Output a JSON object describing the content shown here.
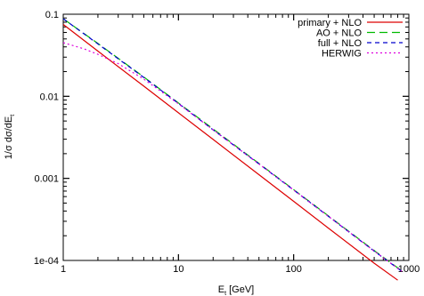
{
  "chart_data": {
    "type": "line",
    "xlabel": "E",
    "xlabel_sub": "t",
    "xlabel_unit": " [GeV]",
    "ylabel": "1/σ dσ/dE",
    "ylabel_sub": "t",
    "xscale": "log",
    "yscale": "log",
    "xlim": [
      1,
      1000
    ],
    "ylim": [
      0.0001,
      0.1
    ],
    "x_ticks": [
      1,
      10,
      100,
      1000
    ],
    "x_tick_labels": [
      "1",
      "10",
      "100",
      "1000"
    ],
    "y_ticks": [
      0.0001,
      0.001,
      0.01,
      0.1
    ],
    "y_tick_labels": [
      "1e-04",
      "0.001",
      "0.01",
      "0.1"
    ],
    "grid": false,
    "legend_position": "top-right",
    "series": [
      {
        "name": "primary + NLO",
        "color": "#dd0000",
        "dash": "solid",
        "x": [
          1,
          2,
          5,
          10,
          20,
          50,
          100,
          200,
          500,
          800
        ],
        "y": [
          0.075,
          0.0355,
          0.0133,
          0.0063,
          0.00298,
          0.00111,
          0.000525,
          0.000248,
          9.25e-05,
          5.75e-05
        ]
      },
      {
        "name": "AO + NLO",
        "color": "#00bb00",
        "dash": "long-dash",
        "x": [
          1,
          2,
          5,
          10,
          20,
          50,
          100,
          200,
          500,
          870
        ],
        "y": [
          0.088,
          0.044,
          0.0172,
          0.0083,
          0.004,
          0.00152,
          0.00073,
          0.00035,
          0.000132,
          7.45e-05
        ]
      },
      {
        "name": "full + NLO",
        "color": "#0000cc",
        "dash": "dash",
        "x": [
          1,
          2,
          5,
          10,
          20,
          50,
          100,
          200,
          500,
          870
        ],
        "y": [
          0.088,
          0.0435,
          0.017,
          0.0082,
          0.0039,
          0.0015,
          0.00072,
          0.000345,
          0.00013,
          7.35e-05
        ]
      },
      {
        "name": "HERWIG",
        "color": "#dd00dd",
        "dash": "dot",
        "x": [
          1,
          1.5,
          2,
          3,
          5,
          10,
          20,
          50,
          100,
          200,
          500,
          870
        ],
        "y": [
          0.045,
          0.038,
          0.0325,
          0.025,
          0.0162,
          0.0081,
          0.0039,
          0.0015,
          0.00072,
          0.000345,
          0.00013,
          7.35e-05
        ]
      }
    ]
  }
}
